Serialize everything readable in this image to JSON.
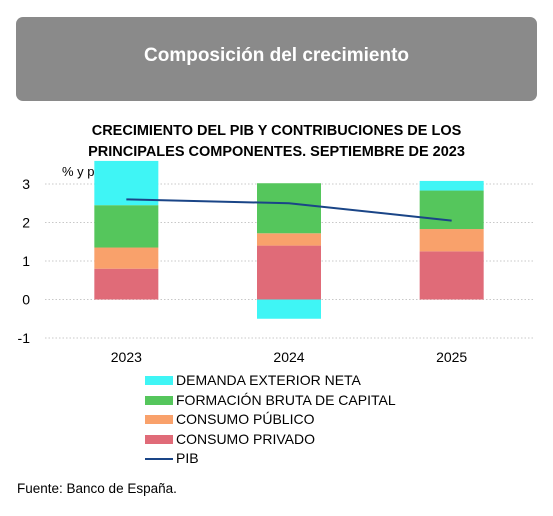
{
  "header": {
    "title": "Composición del crecimiento"
  },
  "chart": {
    "title_line1": "CRECIMIENTO DEL PIB Y CONTRIBUCIONES DE LOS",
    "title_line2": "PRINCIPALES COMPONENTES. SEPTIEMBRE DE 2023"
  },
  "source": "Fuente: Banco de España.",
  "chart_data": {
    "type": "bar",
    "stacked": true,
    "unit_label": "% y pp",
    "categories": [
      "2023",
      "2024",
      "2025"
    ],
    "ylim": [
      -1,
      3
    ],
    "yticks": [
      3,
      2,
      1,
      0,
      -1
    ],
    "grid": true,
    "legend_position": "bottom",
    "series": [
      {
        "name": "CONSUMO PRIVADO",
        "color": "#e06b78",
        "values": [
          0.8,
          1.4,
          1.25
        ]
      },
      {
        "name": "CONSUMO PÚBLICO",
        "color": "#f9a16b",
        "values": [
          0.55,
          0.32,
          0.58
        ]
      },
      {
        "name": "FORMACIÓN BRUTA DE CAPITAL",
        "color": "#55c65c",
        "values": [
          1.1,
          1.3,
          1.0
        ]
      },
      {
        "name": "DEMANDA EXTERIOR NETA",
        "color": "#3ff5f5",
        "values": [
          1.15,
          -0.5,
          0.25
        ]
      }
    ],
    "line": {
      "name": "PIB",
      "color": "#1a4587",
      "values": [
        2.6,
        2.5,
        2.05
      ]
    },
    "legend_order": [
      "DEMANDA EXTERIOR NETA",
      "FORMACIÓN BRUTA DE CAPITAL",
      "CONSUMO PÚBLICO",
      "CONSUMO PRIVADO",
      "PIB"
    ]
  }
}
